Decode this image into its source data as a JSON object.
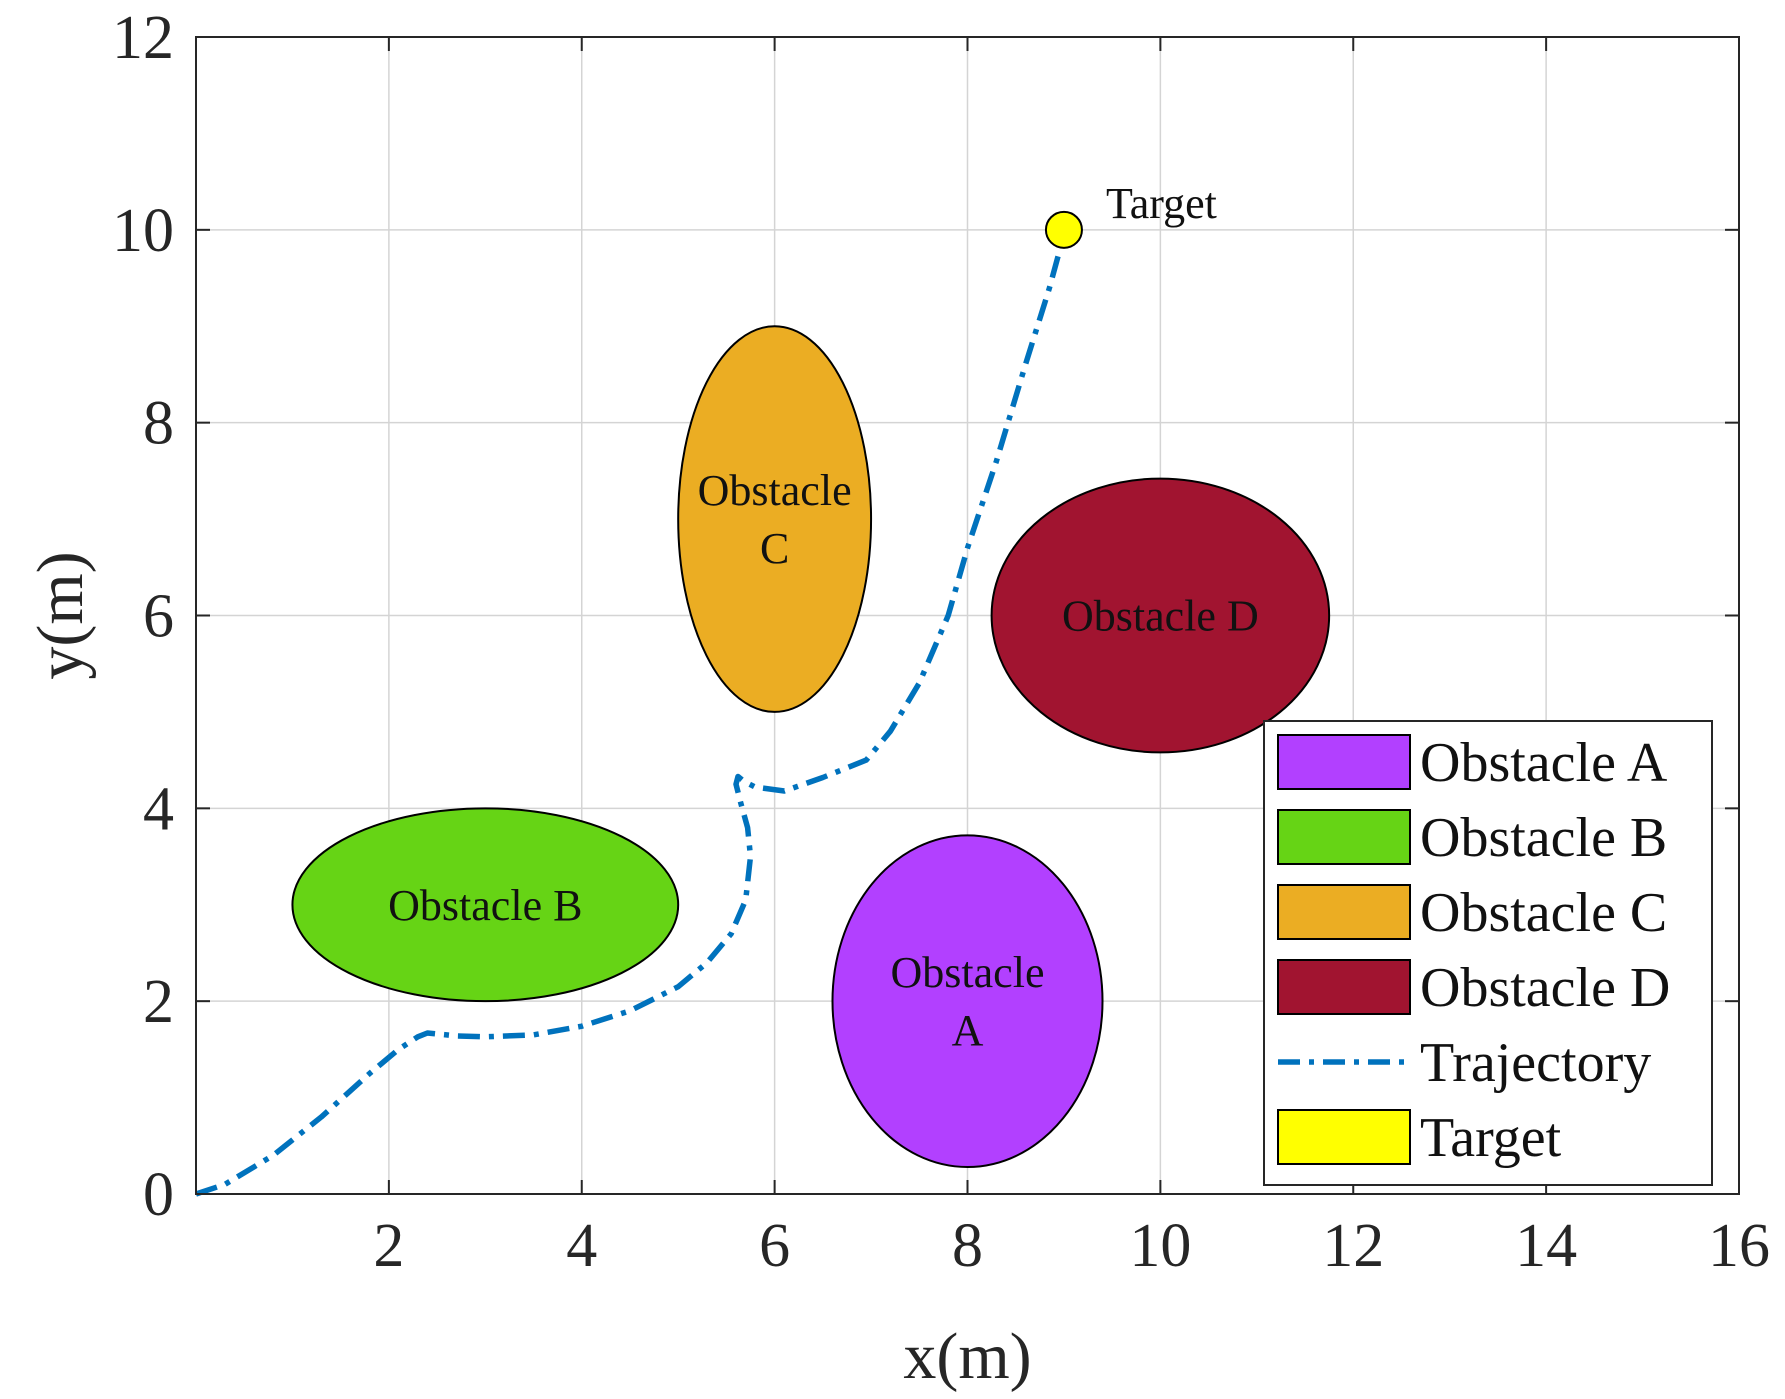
{
  "chart_data": {
    "type": "scatter",
    "xlabel": "x(m)",
    "ylabel": "y(m)",
    "xlim": [
      0,
      16
    ],
    "ylim": [
      0,
      12
    ],
    "xticks": [
      2,
      4,
      6,
      8,
      10,
      12,
      14,
      16
    ],
    "yticks": [
      0,
      2,
      4,
      6,
      8,
      10,
      12
    ],
    "grid": true,
    "obstacles": [
      {
        "name": "Obstacle A",
        "label_lines": [
          "Obstacle",
          "A"
        ],
        "cx": 8,
        "cy": 2,
        "rx": 1.4,
        "ry": 1.72,
        "color": "#B240FF"
      },
      {
        "name": "Obstacle B",
        "label_lines": [
          "Obstacle B"
        ],
        "cx": 3,
        "cy": 3,
        "rx": 2.0,
        "ry": 1.0,
        "color": "#66D415"
      },
      {
        "name": "Obstacle C",
        "label_lines": [
          "Obstacle",
          "C"
        ],
        "cx": 6,
        "cy": 7,
        "rx": 1.0,
        "ry": 2.0,
        "color": "#EBAD23"
      },
      {
        "name": "Obstacle D",
        "label_lines": [
          "Obstacle D"
        ],
        "cx": 10,
        "cy": 6,
        "rx": 1.75,
        "ry": 1.42,
        "color": "#A11430"
      }
    ],
    "trajectory": {
      "name": "Trajectory",
      "color": "#0072BD",
      "x": [
        0,
        0.3,
        0.8,
        1.3,
        1.8,
        2.1,
        2.3,
        2.4,
        2.7,
        3.0,
        3.5,
        4.0,
        4.5,
        5.0,
        5.3,
        5.55,
        5.7,
        5.75,
        5.72,
        5.65,
        5.6,
        5.62,
        5.68,
        5.8,
        6.1,
        6.5,
        6.95,
        7.2,
        7.5,
        7.8,
        8.0,
        8.3,
        8.6,
        8.85,
        9.0
      ],
      "y": [
        0,
        0.1,
        0.4,
        0.8,
        1.25,
        1.5,
        1.63,
        1.67,
        1.64,
        1.63,
        1.65,
        1.74,
        1.9,
        2.15,
        2.4,
        2.7,
        3.05,
        3.5,
        3.8,
        4.05,
        4.25,
        4.33,
        4.28,
        4.22,
        4.18,
        4.32,
        4.5,
        4.8,
        5.3,
        6.0,
        6.7,
        7.6,
        8.6,
        9.4,
        9.95
      ]
    },
    "target": {
      "name": "Target",
      "label": "Target",
      "x": 9,
      "y": 10,
      "color": "#FFFF00"
    },
    "legend": {
      "position": "bottom-right",
      "entries": [
        {
          "label": "Obstacle A",
          "kind": "patch",
          "color": "#B240FF"
        },
        {
          "label": "Obstacle B",
          "kind": "patch",
          "color": "#66D415"
        },
        {
          "label": "Obstacle C",
          "kind": "patch",
          "color": "#EBAD23"
        },
        {
          "label": "Obstacle D",
          "kind": "patch",
          "color": "#A11430"
        },
        {
          "label": "Trajectory",
          "kind": "line",
          "color": "#0072BD"
        },
        {
          "label": "Target",
          "kind": "patch",
          "color": "#FFFF00"
        }
      ]
    }
  }
}
